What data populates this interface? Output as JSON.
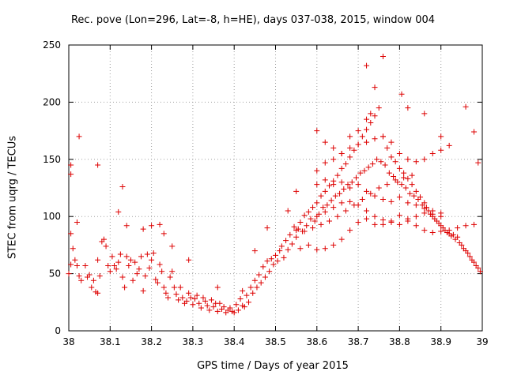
{
  "chart_data": {
    "type": "scatter",
    "title": "Rec. pove (Lon=296, Lat=-8, h=HE), days 037-038, 2015, window 004",
    "xlabel": "GPS time / Days of year 2015",
    "ylabel": "STEC from uqrg / TECUs",
    "xlim": [
      38,
      39
    ],
    "ylim": [
      0,
      250
    ],
    "xticks": [
      "38",
      "38.1",
      "38.2",
      "38.3",
      "38.4",
      "38.5",
      "38.6",
      "38.7",
      "38.8",
      "38.9",
      "39"
    ],
    "yticks": [
      "0",
      "50",
      "100",
      "150",
      "200",
      "250"
    ],
    "grid": true,
    "marker": "+",
    "color": "#dd0000",
    "points": [
      [
        38.0,
        50
      ],
      [
        38.005,
        58
      ],
      [
        38.01,
        72
      ],
      [
        38.005,
        85
      ],
      [
        38.015,
        62
      ],
      [
        38.02,
        57
      ],
      [
        38.02,
        95
      ],
      [
        38.025,
        48
      ],
      [
        38.03,
        44
      ],
      [
        38.04,
        57
      ],
      [
        38.045,
        47
      ],
      [
        38.05,
        49
      ],
      [
        38.055,
        38
      ],
      [
        38.06,
        44
      ],
      [
        38.065,
        34
      ],
      [
        38.07,
        33
      ],
      [
        38.07,
        62
      ],
      [
        38.075,
        48
      ],
      [
        38.08,
        78
      ],
      [
        38.085,
        80
      ],
      [
        38.09,
        74
      ],
      [
        38.095,
        57
      ],
      [
        38.1,
        52
      ],
      [
        38.105,
        65
      ],
      [
        38.11,
        57
      ],
      [
        38.115,
        54
      ],
      [
        38.12,
        60
      ],
      [
        38.125,
        67
      ],
      [
        38.13,
        47
      ],
      [
        38.135,
        38
      ],
      [
        38.14,
        65
      ],
      [
        38.145,
        57
      ],
      [
        38.15,
        62
      ],
      [
        38.155,
        44
      ],
      [
        38.16,
        60
      ],
      [
        38.165,
        50
      ],
      [
        38.17,
        54
      ],
      [
        38.175,
        65
      ],
      [
        38.18,
        35
      ],
      [
        38.185,
        48
      ],
      [
        38.19,
        67
      ],
      [
        38.195,
        55
      ],
      [
        38.2,
        62
      ],
      [
        38.205,
        68
      ],
      [
        38.21,
        45
      ],
      [
        38.215,
        42
      ],
      [
        38.22,
        58
      ],
      [
        38.225,
        52
      ],
      [
        38.23,
        38
      ],
      [
        38.235,
        33
      ],
      [
        38.24,
        29
      ],
      [
        38.245,
        47
      ],
      [
        38.25,
        52
      ],
      [
        38.255,
        38
      ],
      [
        38.26,
        32
      ],
      [
        38.265,
        27
      ],
      [
        38.27,
        38
      ],
      [
        38.275,
        29
      ],
      [
        38.28,
        24
      ],
      [
        38.285,
        26
      ],
      [
        38.29,
        33
      ],
      [
        38.295,
        29
      ],
      [
        38.3,
        23
      ],
      [
        38.305,
        28
      ],
      [
        38.31,
        31
      ],
      [
        38.315,
        24
      ],
      [
        38.32,
        20
      ],
      [
        38.325,
        29
      ],
      [
        38.33,
        26
      ],
      [
        38.335,
        22
      ],
      [
        38.34,
        18
      ],
      [
        38.345,
        27
      ],
      [
        38.35,
        21
      ],
      [
        38.355,
        24
      ],
      [
        38.36,
        17
      ],
      [
        38.365,
        24
      ],
      [
        38.37,
        19
      ],
      [
        38.375,
        21
      ],
      [
        38.38,
        16
      ],
      [
        38.385,
        18
      ],
      [
        38.39,
        20
      ],
      [
        38.395,
        17
      ],
      [
        38.4,
        16
      ],
      [
        38.405,
        23
      ],
      [
        38.41,
        18
      ],
      [
        38.415,
        28
      ],
      [
        38.42,
        22
      ],
      [
        38.425,
        21
      ],
      [
        38.43,
        31
      ],
      [
        38.435,
        25
      ],
      [
        38.44,
        38
      ],
      [
        38.445,
        33
      ],
      [
        38.45,
        44
      ],
      [
        38.455,
        38
      ],
      [
        38.46,
        49
      ],
      [
        38.465,
        42
      ],
      [
        38.47,
        56
      ],
      [
        38.475,
        47
      ],
      [
        38.48,
        61
      ],
      [
        38.485,
        52
      ],
      [
        38.49,
        63
      ],
      [
        38.495,
        58
      ],
      [
        38.5,
        66
      ],
      [
        38.505,
        61
      ],
      [
        38.51,
        70
      ],
      [
        38.515,
        74
      ],
      [
        38.52,
        64
      ],
      [
        38.525,
        79
      ],
      [
        38.53,
        71
      ],
      [
        38.535,
        84
      ],
      [
        38.54,
        76
      ],
      [
        38.545,
        91
      ],
      [
        38.55,
        82
      ],
      [
        38.555,
        89
      ],
      [
        38.56,
        95
      ],
      [
        38.565,
        87
      ],
      [
        38.57,
        101
      ],
      [
        38.575,
        92
      ],
      [
        38.58,
        104
      ],
      [
        38.585,
        98
      ],
      [
        38.59,
        108
      ],
      [
        38.595,
        96
      ],
      [
        38.6,
        112
      ],
      [
        38.605,
        102
      ],
      [
        38.61,
        118
      ],
      [
        38.615,
        108
      ],
      [
        38.62,
        122
      ],
      [
        38.625,
        110
      ],
      [
        38.63,
        127
      ],
      [
        38.635,
        114
      ],
      [
        38.64,
        131
      ],
      [
        38.645,
        118
      ],
      [
        38.65,
        136
      ],
      [
        38.655,
        120
      ],
      [
        38.66,
        142
      ],
      [
        38.665,
        124
      ],
      [
        38.67,
        146
      ],
      [
        38.675,
        128
      ],
      [
        38.68,
        152
      ],
      [
        38.685,
        130
      ],
      [
        38.69,
        158
      ],
      [
        38.695,
        134
      ],
      [
        38.7,
        163
      ],
      [
        38.705,
        138
      ],
      [
        38.71,
        170
      ],
      [
        38.715,
        140
      ],
      [
        38.72,
        176
      ],
      [
        38.725,
        143
      ],
      [
        38.73,
        182
      ],
      [
        38.735,
        146
      ],
      [
        38.74,
        188
      ],
      [
        38.745,
        150
      ],
      [
        38.75,
        195
      ],
      [
        38.755,
        148
      ],
      [
        38.76,
        170
      ],
      [
        38.765,
        145
      ],
      [
        38.77,
        160
      ],
      [
        38.775,
        138
      ],
      [
        38.78,
        152
      ],
      [
        38.785,
        135
      ],
      [
        38.79,
        148
      ],
      [
        38.795,
        130
      ],
      [
        38.8,
        142
      ],
      [
        38.805,
        128
      ],
      [
        38.81,
        138
      ],
      [
        38.815,
        125
      ],
      [
        38.82,
        133
      ],
      [
        38.825,
        120
      ],
      [
        38.83,
        128
      ],
      [
        38.835,
        118
      ],
      [
        38.84,
        122
      ],
      [
        38.845,
        115
      ],
      [
        38.85,
        117
      ],
      [
        38.855,
        110
      ],
      [
        38.86,
        112
      ],
      [
        38.865,
        108
      ],
      [
        38.87,
        105
      ],
      [
        38.875,
        102
      ],
      [
        38.88,
        100
      ],
      [
        38.885,
        98
      ],
      [
        38.89,
        96
      ],
      [
        38.895,
        94
      ],
      [
        38.9,
        92
      ],
      [
        38.905,
        90
      ],
      [
        38.91,
        88
      ],
      [
        38.915,
        86
      ],
      [
        38.92,
        85
      ],
      [
        38.925,
        83
      ],
      [
        38.93,
        84
      ],
      [
        38.935,
        80
      ],
      [
        38.94,
        82
      ],
      [
        38.945,
        77
      ],
      [
        38.95,
        75
      ],
      [
        38.955,
        72
      ],
      [
        38.96,
        70
      ],
      [
        38.965,
        68
      ],
      [
        38.97,
        65
      ],
      [
        38.975,
        62
      ],
      [
        38.98,
        60
      ],
      [
        38.985,
        57
      ],
      [
        38.99,
        55
      ],
      [
        38.995,
        52
      ],
      [
        38.005,
        137
      ],
      [
        38.005,
        145
      ],
      [
        38.025,
        170
      ],
      [
        38.07,
        145
      ],
      [
        38.12,
        104
      ],
      [
        38.13,
        126
      ],
      [
        38.14,
        92
      ],
      [
        38.18,
        89
      ],
      [
        38.2,
        92
      ],
      [
        38.22,
        93
      ],
      [
        38.23,
        85
      ],
      [
        38.25,
        74
      ],
      [
        38.29,
        62
      ],
      [
        38.36,
        38
      ],
      [
        38.42,
        35
      ],
      [
        38.45,
        70
      ],
      [
        38.48,
        90
      ],
      [
        38.53,
        105
      ],
      [
        38.55,
        122
      ],
      [
        38.6,
        175
      ],
      [
        38.62,
        165
      ],
      [
        38.64,
        160
      ],
      [
        38.66,
        155
      ],
      [
        38.68,
        170
      ],
      [
        38.7,
        175
      ],
      [
        38.72,
        185
      ],
      [
        38.73,
        190
      ],
      [
        38.74,
        213
      ],
      [
        38.72,
        232
      ],
      [
        38.76,
        240
      ],
      [
        38.805,
        207
      ],
      [
        38.82,
        195
      ],
      [
        38.86,
        190
      ],
      [
        38.9,
        170
      ],
      [
        38.96,
        196
      ],
      [
        38.98,
        174
      ],
      [
        38.99,
        147
      ],
      [
        38.6,
        128
      ],
      [
        38.62,
        132
      ],
      [
        38.64,
        128
      ],
      [
        38.66,
        130
      ],
      [
        38.68,
        125
      ],
      [
        38.7,
        128
      ],
      [
        38.72,
        122
      ],
      [
        38.74,
        118
      ],
      [
        38.76,
        115
      ],
      [
        38.78,
        113
      ],
      [
        38.8,
        117
      ],
      [
        38.82,
        112
      ],
      [
        38.84,
        110
      ],
      [
        38.86,
        107
      ],
      [
        38.88,
        105
      ],
      [
        38.9,
        103
      ],
      [
        38.6,
        100
      ],
      [
        38.62,
        104
      ],
      [
        38.64,
        108
      ],
      [
        38.66,
        112
      ],
      [
        38.68,
        113
      ],
      [
        38.7,
        110
      ],
      [
        38.72,
        105
      ],
      [
        38.74,
        100
      ],
      [
        38.76,
        97
      ],
      [
        38.78,
        95
      ],
      [
        38.8,
        93
      ],
      [
        38.82,
        98
      ],
      [
        38.84,
        100
      ],
      [
        38.86,
        103
      ],
      [
        38.88,
        102
      ],
      [
        38.9,
        100
      ],
      [
        38.56,
        72
      ],
      [
        38.58,
        75
      ],
      [
        38.6,
        71
      ],
      [
        38.62,
        72
      ],
      [
        38.64,
        75
      ],
      [
        38.66,
        80
      ],
      [
        38.68,
        88
      ],
      [
        38.7,
        95
      ],
      [
        38.72,
        98
      ],
      [
        38.74,
        93
      ],
      [
        38.76,
        93
      ],
      [
        38.78,
        96
      ],
      [
        38.8,
        101
      ],
      [
        38.82,
        96
      ],
      [
        38.84,
        92
      ],
      [
        38.86,
        88
      ],
      [
        38.88,
        86
      ],
      [
        38.9,
        87
      ],
      [
        38.92,
        88
      ],
      [
        38.94,
        90
      ],
      [
        38.96,
        92
      ],
      [
        38.98,
        93
      ],
      [
        38.55,
        88
      ],
      [
        38.57,
        87
      ],
      [
        38.59,
        90
      ],
      [
        38.61,
        93
      ],
      [
        38.63,
        96
      ],
      [
        38.65,
        100
      ],
      [
        38.67,
        105
      ],
      [
        38.69,
        110
      ],
      [
        38.71,
        115
      ],
      [
        38.73,
        120
      ],
      [
        38.75,
        125
      ],
      [
        38.77,
        128
      ],
      [
        38.79,
        132
      ],
      [
        38.81,
        134
      ],
      [
        38.83,
        136
      ],
      [
        38.6,
        140
      ],
      [
        38.62,
        147
      ],
      [
        38.64,
        150
      ],
      [
        38.66,
        155
      ],
      [
        38.68,
        160
      ],
      [
        38.7,
        163
      ],
      [
        38.72,
        165
      ],
      [
        38.74,
        168
      ],
      [
        38.76,
        170
      ],
      [
        38.78,
        165
      ],
      [
        38.8,
        155
      ],
      [
        38.82,
        150
      ],
      [
        38.84,
        148
      ],
      [
        38.86,
        150
      ],
      [
        38.88,
        155
      ],
      [
        38.9,
        158
      ],
      [
        38.92,
        162
      ]
    ]
  }
}
